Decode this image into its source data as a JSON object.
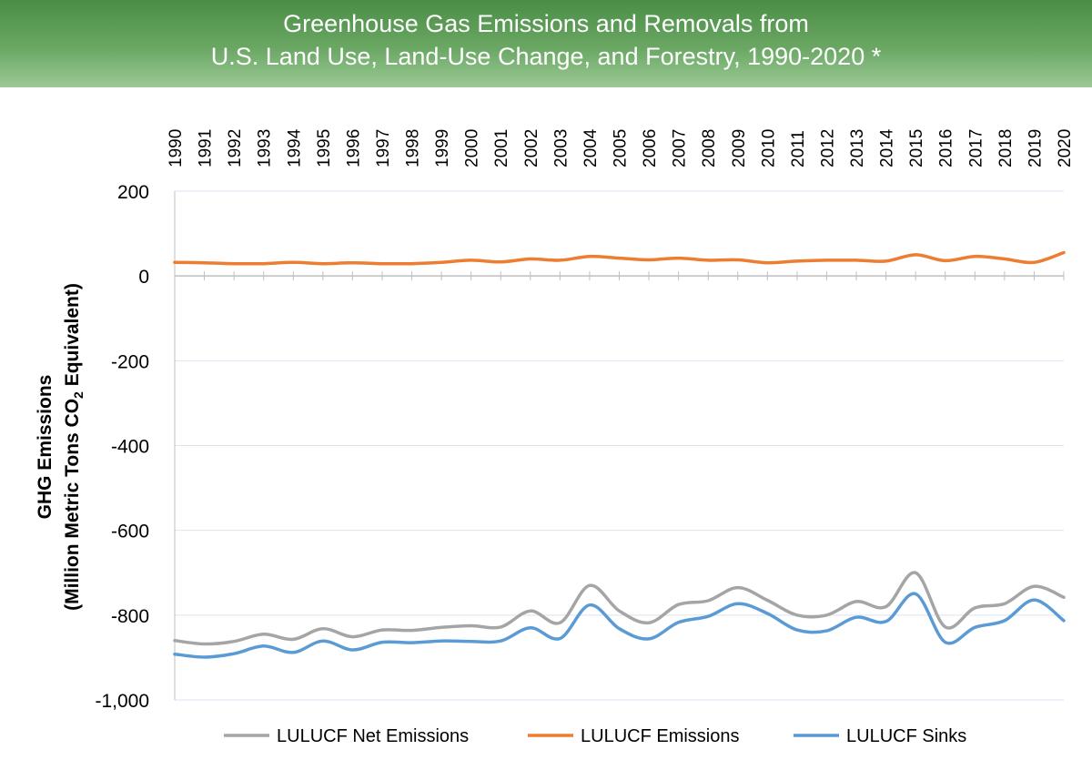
{
  "title": {
    "line1": "Greenhouse Gas Emissions and Removals from",
    "line2": "U.S. Land Use, Land-Use Change, and Forestry, 1990-2020 *"
  },
  "chart_data": {
    "type": "line",
    "title": "Greenhouse Gas Emissions and Removals from U.S. Land Use, Land-Use Change, and Forestry, 1990-2020 *",
    "xlabel": "",
    "ylabel_line1": "GHG Emissions",
    "ylabel_line2_prefix": "(Million Metric Tons CO",
    "ylabel_line2_sub": "2",
    "ylabel_line2_suffix": " Equivalent)",
    "ylim": [
      -1000,
      200
    ],
    "y_ticks": [
      200,
      0,
      -200,
      -400,
      -600,
      -800,
      -1000
    ],
    "y_tick_labels": [
      "200",
      "0",
      "-200",
      "-400",
      "-600",
      "-800",
      "-1,000"
    ],
    "grid": true,
    "legend_position": "bottom",
    "categories": [
      "1990",
      "1991",
      "1992",
      "1993",
      "1994",
      "1995",
      "1996",
      "1997",
      "1998",
      "1999",
      "2000",
      "2001",
      "2002",
      "2003",
      "2004",
      "2005",
      "2006",
      "2007",
      "2008",
      "2009",
      "2010",
      "2011",
      "2012",
      "2013",
      "2014",
      "2015",
      "2016",
      "2017",
      "2018",
      "2019",
      "2020"
    ],
    "series": [
      {
        "name": "LULUCF Net Emissions",
        "color": "#a5a5a5",
        "values": [
          -860,
          -868,
          -862,
          -845,
          -857,
          -832,
          -851,
          -835,
          -836,
          -829,
          -825,
          -828,
          -790,
          -818,
          -730,
          -790,
          -818,
          -775,
          -766,
          -735,
          -765,
          -800,
          -800,
          -768,
          -780,
          -700,
          -828,
          -783,
          -773,
          -732,
          -758
        ]
      },
      {
        "name": "LULUCF Emissions",
        "color": "#ed7d31",
        "values": [
          32,
          31,
          29,
          29,
          32,
          29,
          31,
          29,
          29,
          32,
          37,
          33,
          40,
          37,
          46,
          42,
          38,
          42,
          37,
          38,
          31,
          35,
          37,
          37,
          35,
          50,
          36,
          46,
          40,
          32,
          55
        ]
      },
      {
        "name": "LULUCF Sinks",
        "color": "#5b9bd5",
        "values": [
          -892,
          -899,
          -891,
          -873,
          -888,
          -861,
          -882,
          -864,
          -865,
          -861,
          -862,
          -861,
          -830,
          -855,
          -776,
          -832,
          -856,
          -817,
          -803,
          -773,
          -796,
          -835,
          -837,
          -805,
          -815,
          -750,
          -864,
          -829,
          -813,
          -764,
          -813
        ]
      }
    ]
  }
}
